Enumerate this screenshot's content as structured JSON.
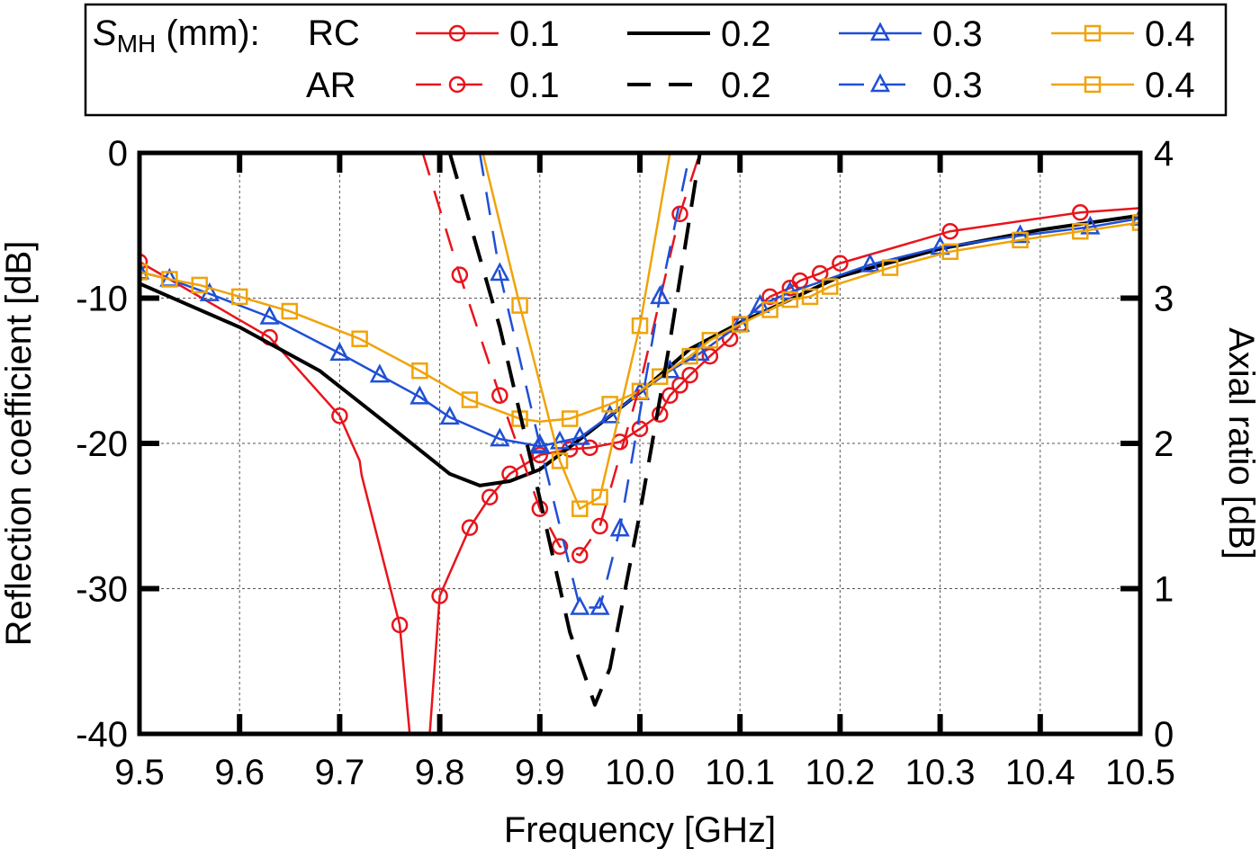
{
  "chart_data": {
    "type": "line",
    "xlabel": "Frequency [GHz]",
    "ylabel": "Reflection coefficient [dB]",
    "y2label": "Axial ratio [dB]",
    "xlim": [
      9.5,
      10.5
    ],
    "ylim": [
      -40,
      0
    ],
    "y2lim": [
      0,
      4
    ],
    "xticks": [
      "9.5",
      "9.6",
      "9.7",
      "9.8",
      "9.9",
      "10.0",
      "10.1",
      "10.2",
      "10.3",
      "10.4",
      "10.5"
    ],
    "yticks": [
      "0",
      "-10",
      "-20",
      "-30",
      "-40"
    ],
    "y2ticks": [
      "4",
      "3",
      "2",
      "1",
      "0"
    ],
    "grid": true,
    "legend": {
      "title_main": "S",
      "title_sub": "MH",
      "title_unit": " (mm):",
      "row_rc": "RC",
      "row_ar": "AR",
      "placement": "top"
    },
    "colors": {
      "0.1": "#e8141c",
      "0.2": "#000000",
      "0.3": "#1f4fd6",
      "0.4": "#f0a30a"
    },
    "series": [
      {
        "name": "0.1",
        "kind": "RC",
        "axis": "left",
        "dash": false,
        "marker": "circle",
        "x": [
          9.5,
          9.63,
          9.7,
          9.72,
          9.722,
          9.76,
          9.77,
          9.79,
          9.8,
          9.83,
          9.85,
          9.87,
          9.9,
          9.93,
          9.95,
          9.98,
          10.0,
          10.02,
          10.03,
          10.04,
          10.05,
          10.07,
          10.09,
          10.1,
          10.13,
          10.15,
          10.16,
          10.18,
          10.2,
          10.31,
          10.44,
          10.5
        ],
        "y": [
          -7.5,
          -12.7,
          -18.1,
          -21.2,
          -22.2,
          -32.5,
          -40,
          -40,
          -30.5,
          -25.8,
          -23.7,
          -22.1,
          -20.8,
          -20.4,
          -20.3,
          -19.9,
          -19.0,
          -18.0,
          -16.7,
          -16.0,
          -15.3,
          -14.0,
          -12.8,
          -11.8,
          -9.9,
          -9.3,
          -8.8,
          -8.3,
          -7.6,
          -5.4,
          -4.1,
          -3.8
        ],
        "markers": [
          0,
          1,
          2,
          5,
          8,
          9,
          10,
          11,
          12,
          13,
          14,
          15,
          16,
          17,
          18,
          19,
          20,
          21,
          22,
          23,
          24,
          25,
          26,
          27,
          28,
          29,
          30
        ]
      },
      {
        "name": "0.2",
        "kind": "RC",
        "axis": "left",
        "dash": false,
        "marker": "none",
        "x": [
          9.5,
          9.6,
          9.68,
          9.75,
          9.81,
          9.84,
          9.87,
          9.9,
          9.95,
          10.0,
          10.05,
          10.1,
          10.2,
          10.3,
          10.4,
          10.5
        ],
        "y": [
          -9.0,
          -12.0,
          -15.0,
          -18.8,
          -22.1,
          -22.9,
          -22.6,
          -21.8,
          -19.2,
          -16.5,
          -13.5,
          -11.7,
          -8.5,
          -6.6,
          -5.3,
          -4.3
        ],
        "markers": []
      },
      {
        "name": "0.3",
        "kind": "RC",
        "axis": "left",
        "dash": false,
        "marker": "triangle",
        "x": [
          9.5,
          9.53,
          9.57,
          9.63,
          9.7,
          9.74,
          9.78,
          9.81,
          9.86,
          9.9,
          9.92,
          9.94,
          9.97,
          10.0,
          10.03,
          10.06,
          10.1,
          10.12,
          10.15,
          10.23,
          10.3,
          10.38,
          10.45,
          10.5
        ],
        "y": [
          -8.2,
          -8.7,
          -9.7,
          -11.3,
          -13.8,
          -15.3,
          -16.8,
          -18.2,
          -19.7,
          -20.2,
          -19.9,
          -19.6,
          -18.1,
          -16.5,
          -15.0,
          -13.8,
          -11.8,
          -10.5,
          -9.6,
          -7.7,
          -6.5,
          -5.7,
          -5.1,
          -4.5
        ],
        "markers": [
          0,
          1,
          2,
          3,
          4,
          5,
          6,
          7,
          8,
          9,
          10,
          11,
          12,
          13,
          14,
          15,
          16,
          17,
          18,
          19,
          20,
          21,
          22,
          23
        ]
      },
      {
        "name": "0.4",
        "kind": "RC",
        "axis": "left",
        "dash": false,
        "marker": "square",
        "x": [
          9.5,
          9.53,
          9.56,
          9.6,
          9.65,
          9.72,
          9.78,
          9.83,
          9.88,
          9.9,
          9.93,
          9.97,
          10.0,
          10.02,
          10.05,
          10.07,
          10.1,
          10.13,
          10.15,
          10.17,
          10.19,
          10.25,
          10.31,
          10.38,
          10.44,
          10.5
        ],
        "y": [
          -8.2,
          -8.7,
          -9.1,
          -9.9,
          -10.9,
          -12.8,
          -15.0,
          -17.0,
          -18.3,
          -18.5,
          -18.3,
          -17.3,
          -16.4,
          -15.4,
          -14.0,
          -12.9,
          -11.8,
          -10.8,
          -10.1,
          -9.9,
          -9.2,
          -7.9,
          -6.8,
          -6.0,
          -5.4,
          -4.8
        ],
        "markers": [
          0,
          1,
          2,
          3,
          4,
          5,
          6,
          7,
          8,
          10,
          11,
          12,
          13,
          14,
          15,
          16,
          17,
          18,
          19,
          20,
          21,
          22,
          23,
          24,
          25
        ]
      },
      {
        "name": "0.1",
        "kind": "AR",
        "axis": "right",
        "dash": true,
        "marker": "circle",
        "x": [
          9.783,
          9.82,
          9.86,
          9.9,
          9.92,
          9.94,
          9.96,
          10.0,
          10.04,
          10.06
        ],
        "y": [
          4.0,
          3.16,
          2.33,
          1.55,
          1.29,
          1.23,
          1.43,
          2.4,
          3.58,
          4.0
        ],
        "markers": [
          1,
          2,
          3,
          4,
          5,
          6,
          8
        ]
      },
      {
        "name": "0.2",
        "kind": "AR",
        "axis": "right",
        "dash": true,
        "marker": "none",
        "x": [
          9.81,
          9.86,
          9.9,
          9.93,
          9.955,
          9.97,
          10.0,
          10.03,
          10.06
        ],
        "y": [
          4.0,
          2.8,
          1.62,
          0.7,
          0.2,
          0.45,
          1.52,
          2.7,
          4.0
        ],
        "markers": []
      },
      {
        "name": "0.3",
        "kind": "AR",
        "axis": "right",
        "dash": true,
        "marker": "triangle",
        "x": [
          9.84,
          9.86,
          9.9,
          9.94,
          9.96,
          9.98,
          10.02,
          10.05
        ],
        "y": [
          4.0,
          3.17,
          1.99,
          0.87,
          0.87,
          1.41,
          3.01,
          4.0
        ],
        "markers": [
          1,
          2,
          3,
          4,
          5,
          6
        ]
      },
      {
        "name": "0.4",
        "kind": "AR",
        "axis": "right",
        "dash": false,
        "marker": "square",
        "x": [
          9.843,
          9.88,
          9.92,
          9.94,
          9.96,
          10.0,
          10.03
        ],
        "y": [
          4.0,
          2.95,
          1.88,
          1.55,
          1.63,
          2.81,
          4.0
        ],
        "markers": [
          1,
          2,
          3,
          4,
          5
        ]
      }
    ]
  }
}
